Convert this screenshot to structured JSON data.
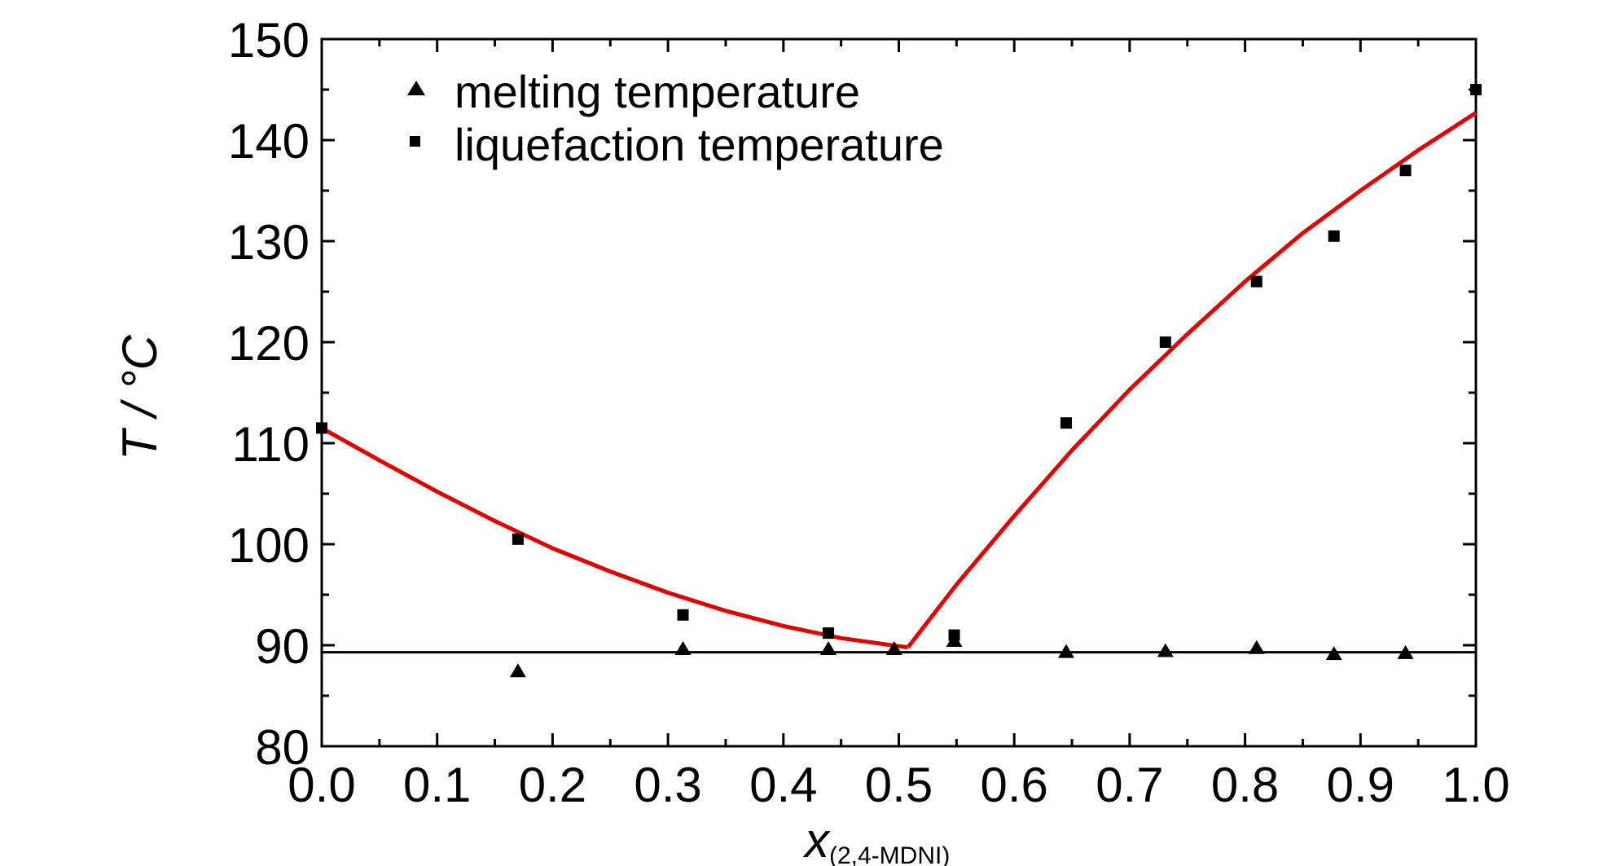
{
  "chart_data": {
    "type": "scatter",
    "xlabel": "x",
    "xlabel_subscript": "(2,4-MDNI)",
    "ylabel": "T / °C",
    "xlim": [
      0.0,
      1.0
    ],
    "ylim": [
      80,
      150
    ],
    "xticks": [
      "0.0",
      "0.1",
      "0.2",
      "0.3",
      "0.4",
      "0.5",
      "0.6",
      "0.7",
      "0.8",
      "0.9",
      "1.0"
    ],
    "yticks": [
      "80",
      "90",
      "100",
      "110",
      "120",
      "130",
      "140",
      "150"
    ],
    "grid": false,
    "legend_position": "top-left",
    "series": [
      {
        "name": "melting temperature",
        "marker": "triangle",
        "color": "#000000",
        "x": [
          0.17,
          0.313,
          0.439,
          0.496,
          0.548,
          0.645,
          0.731,
          0.81,
          0.877,
          0.939
        ],
        "y": [
          87.4,
          89.6,
          89.6,
          89.6,
          90.4,
          89.3,
          89.4,
          89.7,
          89.1,
          89.2
        ]
      },
      {
        "name": "liquefaction temperature",
        "marker": "square",
        "color": "#000000",
        "x": [
          0.0,
          0.17,
          0.313,
          0.439,
          0.548,
          0.645,
          0.731,
          0.81,
          0.877,
          0.939,
          1.0
        ],
        "y": [
          111.5,
          100.5,
          93.0,
          91.2,
          91.0,
          112.0,
          120.0,
          126.0,
          130.5,
          137.0,
          145.0
        ]
      }
    ],
    "fit_curves": [
      {
        "color": "#e00000",
        "x": [
          0.0,
          0.05,
          0.1,
          0.15,
          0.2,
          0.25,
          0.3,
          0.35,
          0.4,
          0.45,
          0.5,
          0.508
        ],
        "y": [
          111.5,
          108.3,
          105.2,
          102.3,
          99.6,
          97.3,
          95.2,
          93.4,
          91.9,
          90.7,
          89.9,
          89.8
        ]
      },
      {
        "color": "#e00000",
        "x": [
          0.508,
          0.55,
          0.6,
          0.65,
          0.7,
          0.75,
          0.8,
          0.85,
          0.9,
          0.95,
          1.0
        ],
        "y": [
          89.8,
          96.0,
          102.8,
          109.3,
          115.3,
          120.8,
          126.0,
          130.8,
          135.0,
          139.0,
          142.7
        ]
      }
    ],
    "reference_line": {
      "y": 89.3,
      "color": "#000000"
    }
  }
}
